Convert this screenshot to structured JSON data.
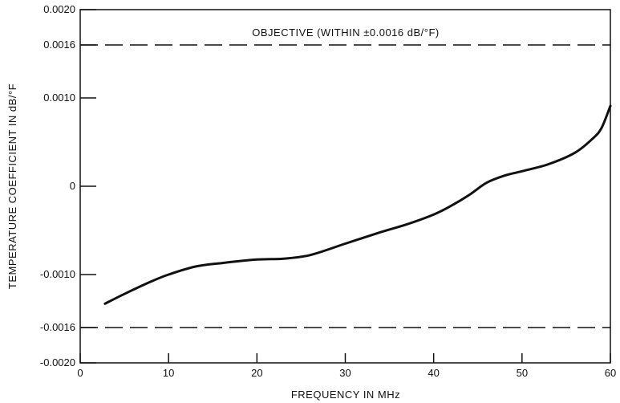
{
  "chart_data": {
    "type": "line",
    "title": "",
    "xlabel": "FREQUENCY IN MHz",
    "ylabel": "TEMPERATURE COEFFICIENT IN dB/°F",
    "xlim": [
      0,
      60
    ],
    "ylim": [
      -0.002,
      0.002
    ],
    "grid": false,
    "x_ticks": [
      {
        "value": 0,
        "label": "0"
      },
      {
        "value": 10,
        "label": "10"
      },
      {
        "value": 20,
        "label": "20"
      },
      {
        "value": 30,
        "label": "30"
      },
      {
        "value": 40,
        "label": "40"
      },
      {
        "value": 50,
        "label": "50"
      },
      {
        "value": 60,
        "label": "60"
      }
    ],
    "y_ticks": [
      {
        "value": 0.002,
        "label": "0.0020"
      },
      {
        "value": 0.0016,
        "label": "0.0016"
      },
      {
        "value": 0.001,
        "label": "0.0010"
      },
      {
        "value": 0,
        "label": "0"
      },
      {
        "value": -0.001,
        "label": "-0.0010"
      },
      {
        "value": -0.0016,
        "label": "-0.0016"
      },
      {
        "value": -0.002,
        "label": "-0.0020"
      }
    ],
    "series": [
      {
        "x": [
          2.8,
          5,
          8,
          10,
          13,
          16,
          20,
          23,
          26,
          30,
          34,
          37,
          40,
          42,
          44,
          46,
          48,
          50,
          53,
          56,
          58,
          59,
          60
        ],
        "y": [
          -0.00133,
          -0.00122,
          -0.00108,
          -0.001,
          -0.00091,
          -0.00087,
          -0.00083,
          -0.00082,
          -0.00078,
          -0.00065,
          -0.00052,
          -0.00043,
          -0.00032,
          -0.00022,
          -0.0001,
          4e-05,
          0.00012,
          0.00017,
          0.00025,
          0.00038,
          0.00054,
          0.00066,
          0.00091
        ]
      }
    ],
    "reference_lines": [
      {
        "y": 0.0016,
        "style": "dashed"
      },
      {
        "y": -0.0016,
        "style": "dashed"
      }
    ],
    "annotations": [
      {
        "text": "OBJECTIVE (WITHIN ±0.0016 dB/°F)"
      }
    ]
  }
}
